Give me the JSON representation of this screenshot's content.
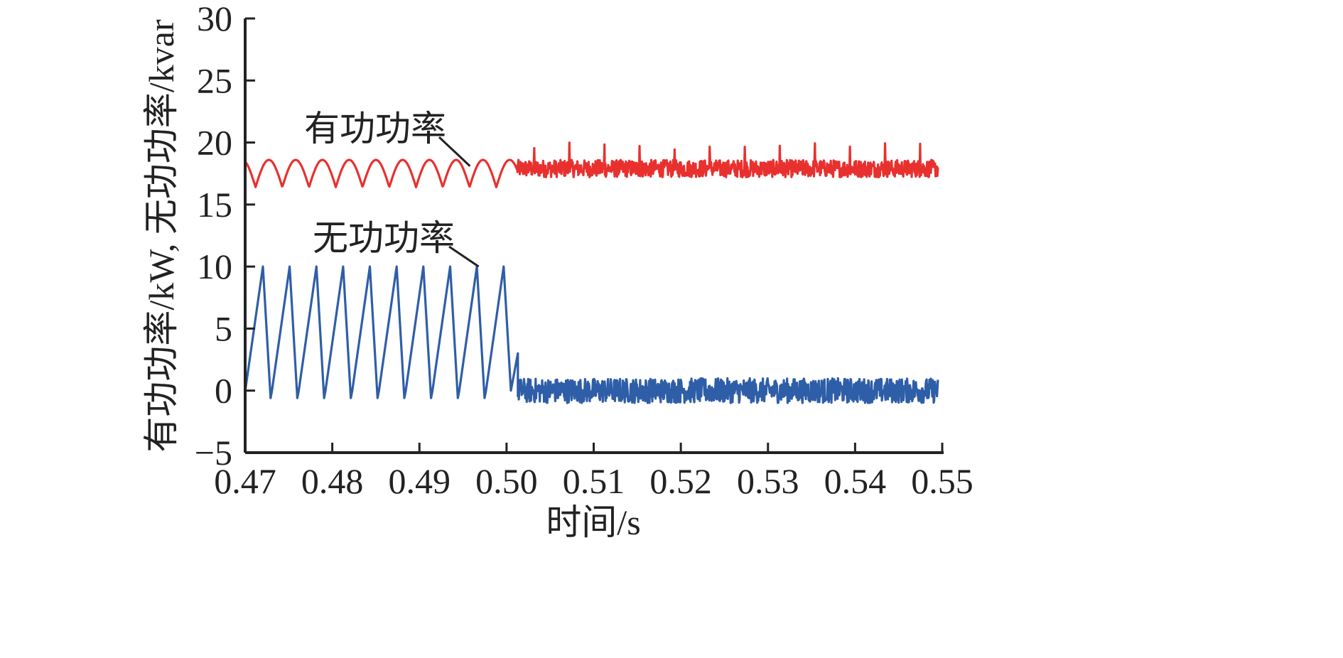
{
  "chart_data": {
    "type": "line",
    "title": "",
    "xlabel": "时间/s",
    "ylabel": "有功功率/kW, 无功功率/kvar",
    "xlim": [
      0.47,
      0.55
    ],
    "ylim": [
      -5,
      30
    ],
    "x_ticks": [
      0.47,
      0.48,
      0.49,
      0.5,
      0.51,
      0.52,
      0.53,
      0.54,
      0.55
    ],
    "x_tick_labels": [
      "0.47",
      "0.48",
      "0.49",
      "0.50",
      "0.51",
      "0.52",
      "0.53",
      "0.54",
      "0.55"
    ],
    "y_ticks": [
      -5,
      0,
      5,
      10,
      15,
      20,
      25,
      30
    ],
    "y_tick_labels": [
      "−5",
      "0",
      "5",
      "10",
      "15",
      "20",
      "25",
      "30"
    ],
    "grid": false,
    "legend": "none (series labelled by callouts)",
    "series": [
      {
        "name": "有功功率",
        "color": "#e8312f",
        "annotation_at": [
          0.4958,
          18.1
        ],
        "segments": [
          {
            "t_start": 0.47,
            "t_end": 0.5012,
            "shape": "full-wave rectified sinusoid",
            "period": 0.00307,
            "min": 16.4,
            "max": 18.6
          },
          {
            "t_start": 0.5012,
            "t_end": 0.5495,
            "shape": "noisy ripple with periodic spikes",
            "mean": 17.9,
            "noise": 0.7,
            "spike_peak": 20.0
          }
        ]
      },
      {
        "name": "无功功率",
        "color": "#2f5ea8",
        "annotation_at": [
          0.4968,
          10.0
        ],
        "segments": [
          {
            "t_start": 0.47,
            "t_end": 0.5005,
            "shape": "sawtooth",
            "period": 0.00307,
            "min": -0.6,
            "max": 10.0
          },
          {
            "t_start": 0.5005,
            "t_end": 0.5013,
            "shape": "transient",
            "points": [
              [
                0.5005,
                0.0
              ],
              [
                0.5013,
                3.0
              ]
            ]
          },
          {
            "t_start": 0.5013,
            "t_end": 0.5495,
            "shape": "noise",
            "mean": 0.0,
            "noise": 1.0,
            "min": -2.6,
            "max": 1.9
          }
        ]
      }
    ]
  }
}
